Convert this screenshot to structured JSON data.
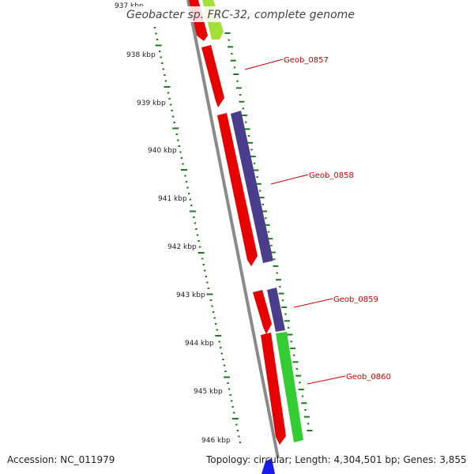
{
  "title": "Geobacter sp. FRC-32, complete genome",
  "footer": {
    "accession": "Accession: NC_011979",
    "summary": "Topology: circular; Length: 4,304,501 bp; Genes: 3,855"
  },
  "colors": {
    "backbone": "#8a8a8a",
    "tick": "#1e7a1e",
    "label": "#cc0000",
    "forward_strand_gene": "#e60000",
    "reverse_strand_gene": "#4a3d8c",
    "green_gene": "#33cc33",
    "lime_gene": "#99dd22",
    "blue_gene": "#1a1aee"
  },
  "scale": {
    "unit": "kbp",
    "ticks": [
      {
        "label": "937 kbp"
      },
      {
        "label": "938 kbp"
      },
      {
        "label": "939 kbp"
      },
      {
        "label": "940 kbp"
      },
      {
        "label": "941 kbp"
      },
      {
        "label": "942 kbp"
      },
      {
        "label": "943 kbp"
      },
      {
        "label": "944 kbp"
      },
      {
        "label": "945 kbp"
      },
      {
        "label": "946 kbp"
      }
    ]
  },
  "genes": [
    {
      "name": "Geob_0857",
      "labeled": true
    },
    {
      "name": "Geob_0858",
      "labeled": true
    },
    {
      "name": "Geob_0859",
      "labeled": true
    },
    {
      "name": "Geob_0860",
      "labeled": true
    }
  ]
}
